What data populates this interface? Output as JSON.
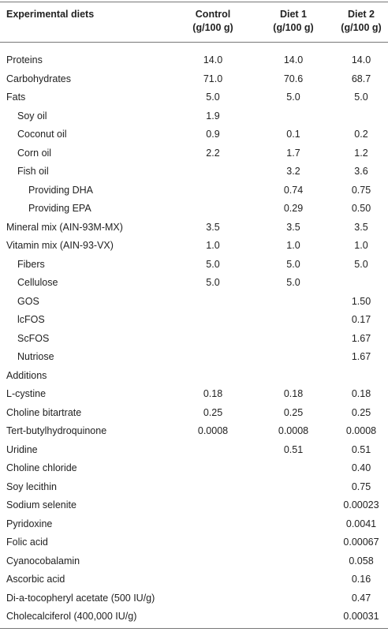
{
  "table": {
    "header": [
      [
        "Experimental diets"
      ],
      [
        "Control",
        "(g/100 g)"
      ],
      [
        "Diet 1",
        "(g/100 g)"
      ],
      [
        "Diet 2",
        "(g/100 g)"
      ]
    ],
    "rows": [
      [
        "Proteins",
        "14.0",
        "14.0",
        "14.0"
      ],
      [
        "Carbohydrates",
        "71.0",
        "70.6",
        "68.7"
      ],
      [
        "Fats",
        "5.0",
        "5.0",
        "5.0"
      ],
      [
        "Soy oil",
        "1.9",
        null,
        null
      ],
      [
        "Coconut oil",
        "0.9",
        "0.1",
        "0.2"
      ],
      [
        "Corn oil",
        "2.2",
        "1.7",
        "1.2"
      ],
      [
        "Fish oil",
        null,
        "3.2",
        "3.6"
      ],
      [
        "Providing DHA",
        null,
        "0.74",
        "0.75"
      ],
      [
        "Providing EPA",
        null,
        "0.29",
        "0.50"
      ],
      [
        "Mineral mix (AIN-93M-MX)",
        "3.5",
        "3.5",
        "3.5"
      ],
      [
        "Vitamin mix (AIN-93-VX)",
        "1.0",
        "1.0",
        "1.0"
      ],
      [
        "Fibers",
        "5.0",
        "5.0",
        "5.0"
      ],
      [
        "Cellulose",
        "5.0",
        "5.0",
        null
      ],
      [
        "GOS",
        null,
        null,
        "1.50"
      ],
      [
        "lcFOS",
        null,
        null,
        "0.17"
      ],
      [
        "ScFOS",
        null,
        null,
        "1.67"
      ],
      [
        "Nutriose",
        null,
        null,
        "1.67"
      ],
      [
        "Additions",
        null,
        null,
        null
      ],
      [
        "L-cystine",
        "0.18",
        "0.18",
        "0.18"
      ],
      [
        "Choline bitartrate",
        "0.25",
        "0.25",
        "0.25"
      ],
      [
        "Tert-butylhydroquinone",
        "0.0008",
        "0.0008",
        "0.0008"
      ],
      [
        "Uridine",
        null,
        "0.51",
        "0.51"
      ],
      [
        "Choline chloride",
        null,
        null,
        "0.40"
      ],
      [
        "Soy lecithin",
        null,
        null,
        "0.75"
      ],
      [
        "Sodium selenite",
        null,
        null,
        "0.00023"
      ],
      [
        "Pyridoxine",
        null,
        null,
        "0.0041"
      ],
      [
        "Folic acid",
        null,
        null,
        "0.00067"
      ],
      [
        "Cyanocobalamin",
        null,
        null,
        "0.058"
      ],
      [
        "Ascorbic acid",
        null,
        null,
        "0.16"
      ],
      [
        "Di-a-tocopheryl acetate (500 IU/g)",
        null,
        null,
        "0.47"
      ],
      [
        "Cholecalciferol (400,000 IU/g)",
        null,
        null,
        "0.00031"
      ]
    ]
  }
}
